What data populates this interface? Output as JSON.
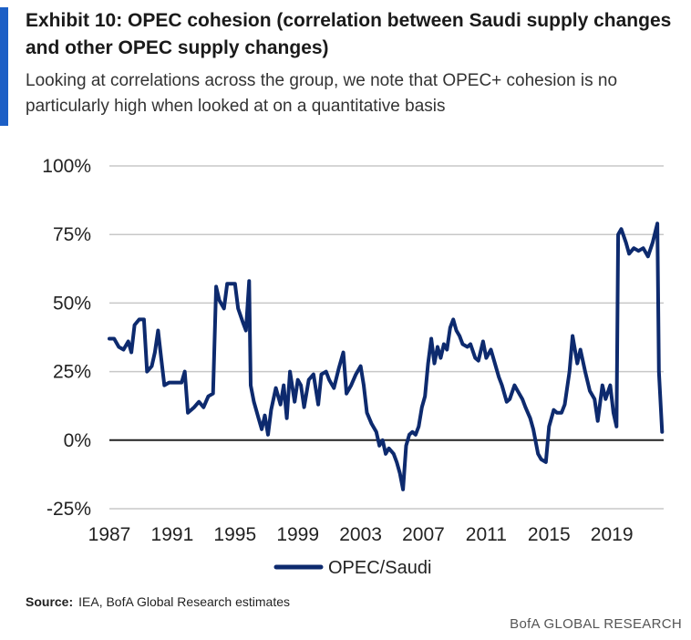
{
  "header": {
    "title": "Exhibit 10: OPEC cohesion (correlation between Saudi supply changes and other OPEC supply changes)",
    "subtitle": "Looking at correlations across the group, we note that OPEC+ cohesion is no particularly high when looked at on a quantitative basis"
  },
  "chart_data": {
    "type": "line",
    "title": "Exhibit 10: OPEC cohesion (correlation between Saudi supply changes and other OPEC supply changes)",
    "xlabel": "",
    "ylabel": "",
    "ylim": [
      -25,
      100
    ],
    "xlim": [
      1987,
      2022.3
    ],
    "grid": true,
    "legend_position": "bottom",
    "y_ticks": [
      -25,
      0,
      25,
      50,
      75,
      100
    ],
    "y_tick_labels": [
      "-25%",
      "0%",
      "25%",
      "50%",
      "75%",
      "100%"
    ],
    "x_ticks": [
      1987,
      1991,
      1995,
      1999,
      2003,
      2007,
      2011,
      2015,
      2019
    ],
    "x_tick_labels": [
      "1987",
      "1991",
      "1995",
      "1999",
      "2003",
      "2007",
      "2011",
      "2015",
      "2019"
    ],
    "series": [
      {
        "name": "OPEC/Saudi",
        "color": "#0d2a6e",
        "points": [
          [
            1987.0,
            37
          ],
          [
            1987.3,
            37
          ],
          [
            1987.6,
            34
          ],
          [
            1987.9,
            33
          ],
          [
            1988.2,
            36
          ],
          [
            1988.4,
            32
          ],
          [
            1988.6,
            42
          ],
          [
            1988.9,
            44
          ],
          [
            1989.2,
            44
          ],
          [
            1989.4,
            25
          ],
          [
            1989.7,
            27
          ],
          [
            1989.9,
            32
          ],
          [
            1990.1,
            40
          ],
          [
            1990.3,
            30
          ],
          [
            1990.5,
            20
          ],
          [
            1990.8,
            21
          ],
          [
            1991.2,
            21
          ],
          [
            1991.6,
            21
          ],
          [
            1991.8,
            25
          ],
          [
            1992.0,
            10
          ],
          [
            1992.4,
            12
          ],
          [
            1992.7,
            14
          ],
          [
            1993.0,
            12
          ],
          [
            1993.3,
            16
          ],
          [
            1993.6,
            17
          ],
          [
            1993.8,
            56
          ],
          [
            1994.0,
            51
          ],
          [
            1994.3,
            48
          ],
          [
            1994.5,
            57
          ],
          [
            1994.8,
            57
          ],
          [
            1995.0,
            57
          ],
          [
            1995.2,
            48
          ],
          [
            1995.5,
            43
          ],
          [
            1995.7,
            40
          ],
          [
            1995.9,
            58
          ],
          [
            1996.0,
            20
          ],
          [
            1996.2,
            14
          ],
          [
            1996.5,
            8
          ],
          [
            1996.7,
            4
          ],
          [
            1996.9,
            9
          ],
          [
            1997.1,
            2
          ],
          [
            1997.3,
            11
          ],
          [
            1997.6,
            19
          ],
          [
            1997.9,
            13
          ],
          [
            1998.1,
            20
          ],
          [
            1998.3,
            8
          ],
          [
            1998.5,
            25
          ],
          [
            1998.8,
            14
          ],
          [
            1999.0,
            22
          ],
          [
            1999.2,
            20
          ],
          [
            1999.4,
            12
          ],
          [
            1999.7,
            22
          ],
          [
            2000.0,
            24
          ],
          [
            2000.3,
            13
          ],
          [
            2000.5,
            24
          ],
          [
            2000.8,
            25
          ],
          [
            2001.0,
            22
          ],
          [
            2001.3,
            19
          ],
          [
            2001.6,
            26
          ],
          [
            2001.9,
            32
          ],
          [
            2002.1,
            17
          ],
          [
            2002.4,
            20
          ],
          [
            2002.7,
            24
          ],
          [
            2003.0,
            27
          ],
          [
            2003.2,
            20
          ],
          [
            2003.4,
            10
          ],
          [
            2003.7,
            6
          ],
          [
            2004.0,
            3
          ],
          [
            2004.2,
            -2
          ],
          [
            2004.4,
            0
          ],
          [
            2004.6,
            -5
          ],
          [
            2004.8,
            -3
          ],
          [
            2005.1,
            -5
          ],
          [
            2005.3,
            -8
          ],
          [
            2005.5,
            -12
          ],
          [
            2005.7,
            -18
          ],
          [
            2005.9,
            -2
          ],
          [
            2006.1,
            2
          ],
          [
            2006.3,
            3
          ],
          [
            2006.5,
            2
          ],
          [
            2006.7,
            5
          ],
          [
            2006.9,
            12
          ],
          [
            2007.1,
            16
          ],
          [
            2007.3,
            28
          ],
          [
            2007.5,
            37
          ],
          [
            2007.7,
            28
          ],
          [
            2007.9,
            34
          ],
          [
            2008.1,
            30
          ],
          [
            2008.3,
            35
          ],
          [
            2008.5,
            33
          ],
          [
            2008.7,
            41
          ],
          [
            2008.9,
            44
          ],
          [
            2009.1,
            40
          ],
          [
            2009.3,
            38
          ],
          [
            2009.5,
            35
          ],
          [
            2009.8,
            34
          ],
          [
            2010.0,
            35
          ],
          [
            2010.3,
            30
          ],
          [
            2010.5,
            29
          ],
          [
            2010.8,
            36
          ],
          [
            2011.0,
            30
          ],
          [
            2011.3,
            33
          ],
          [
            2011.5,
            29
          ],
          [
            2011.8,
            23
          ],
          [
            2012.0,
            20
          ],
          [
            2012.3,
            14
          ],
          [
            2012.5,
            15
          ],
          [
            2012.8,
            20
          ],
          [
            2013.0,
            18
          ],
          [
            2013.3,
            15
          ],
          [
            2013.5,
            12
          ],
          [
            2013.8,
            8
          ],
          [
            2014.0,
            4
          ],
          [
            2014.3,
            -5
          ],
          [
            2014.5,
            -7
          ],
          [
            2014.8,
            -8
          ],
          [
            2015.0,
            5
          ],
          [
            2015.3,
            11
          ],
          [
            2015.5,
            10
          ],
          [
            2015.8,
            10
          ],
          [
            2016.0,
            13
          ],
          [
            2016.3,
            25
          ],
          [
            2016.5,
            38
          ],
          [
            2016.8,
            28
          ],
          [
            2017.0,
            33
          ],
          [
            2017.3,
            25
          ],
          [
            2017.6,
            18
          ],
          [
            2017.9,
            15
          ],
          [
            2018.1,
            7
          ],
          [
            2018.4,
            20
          ],
          [
            2018.6,
            15
          ],
          [
            2018.9,
            20
          ],
          [
            2019.1,
            10
          ],
          [
            2019.3,
            5
          ],
          [
            2019.4,
            75
          ],
          [
            2019.6,
            77
          ],
          [
            2019.9,
            72
          ],
          [
            2020.1,
            68
          ],
          [
            2020.4,
            70
          ],
          [
            2020.7,
            69
          ],
          [
            2021.0,
            70
          ],
          [
            2021.3,
            67
          ],
          [
            2021.6,
            72
          ],
          [
            2021.9,
            79
          ],
          [
            2022.0,
            25
          ],
          [
            2022.2,
            3
          ]
        ]
      }
    ]
  },
  "legend": {
    "label": "OPEC/Saudi"
  },
  "source": {
    "label": "Source:",
    "text": "IEA, BofA Global Research estimates"
  },
  "footer": {
    "brand": "BofA GLOBAL RESEARCH"
  }
}
